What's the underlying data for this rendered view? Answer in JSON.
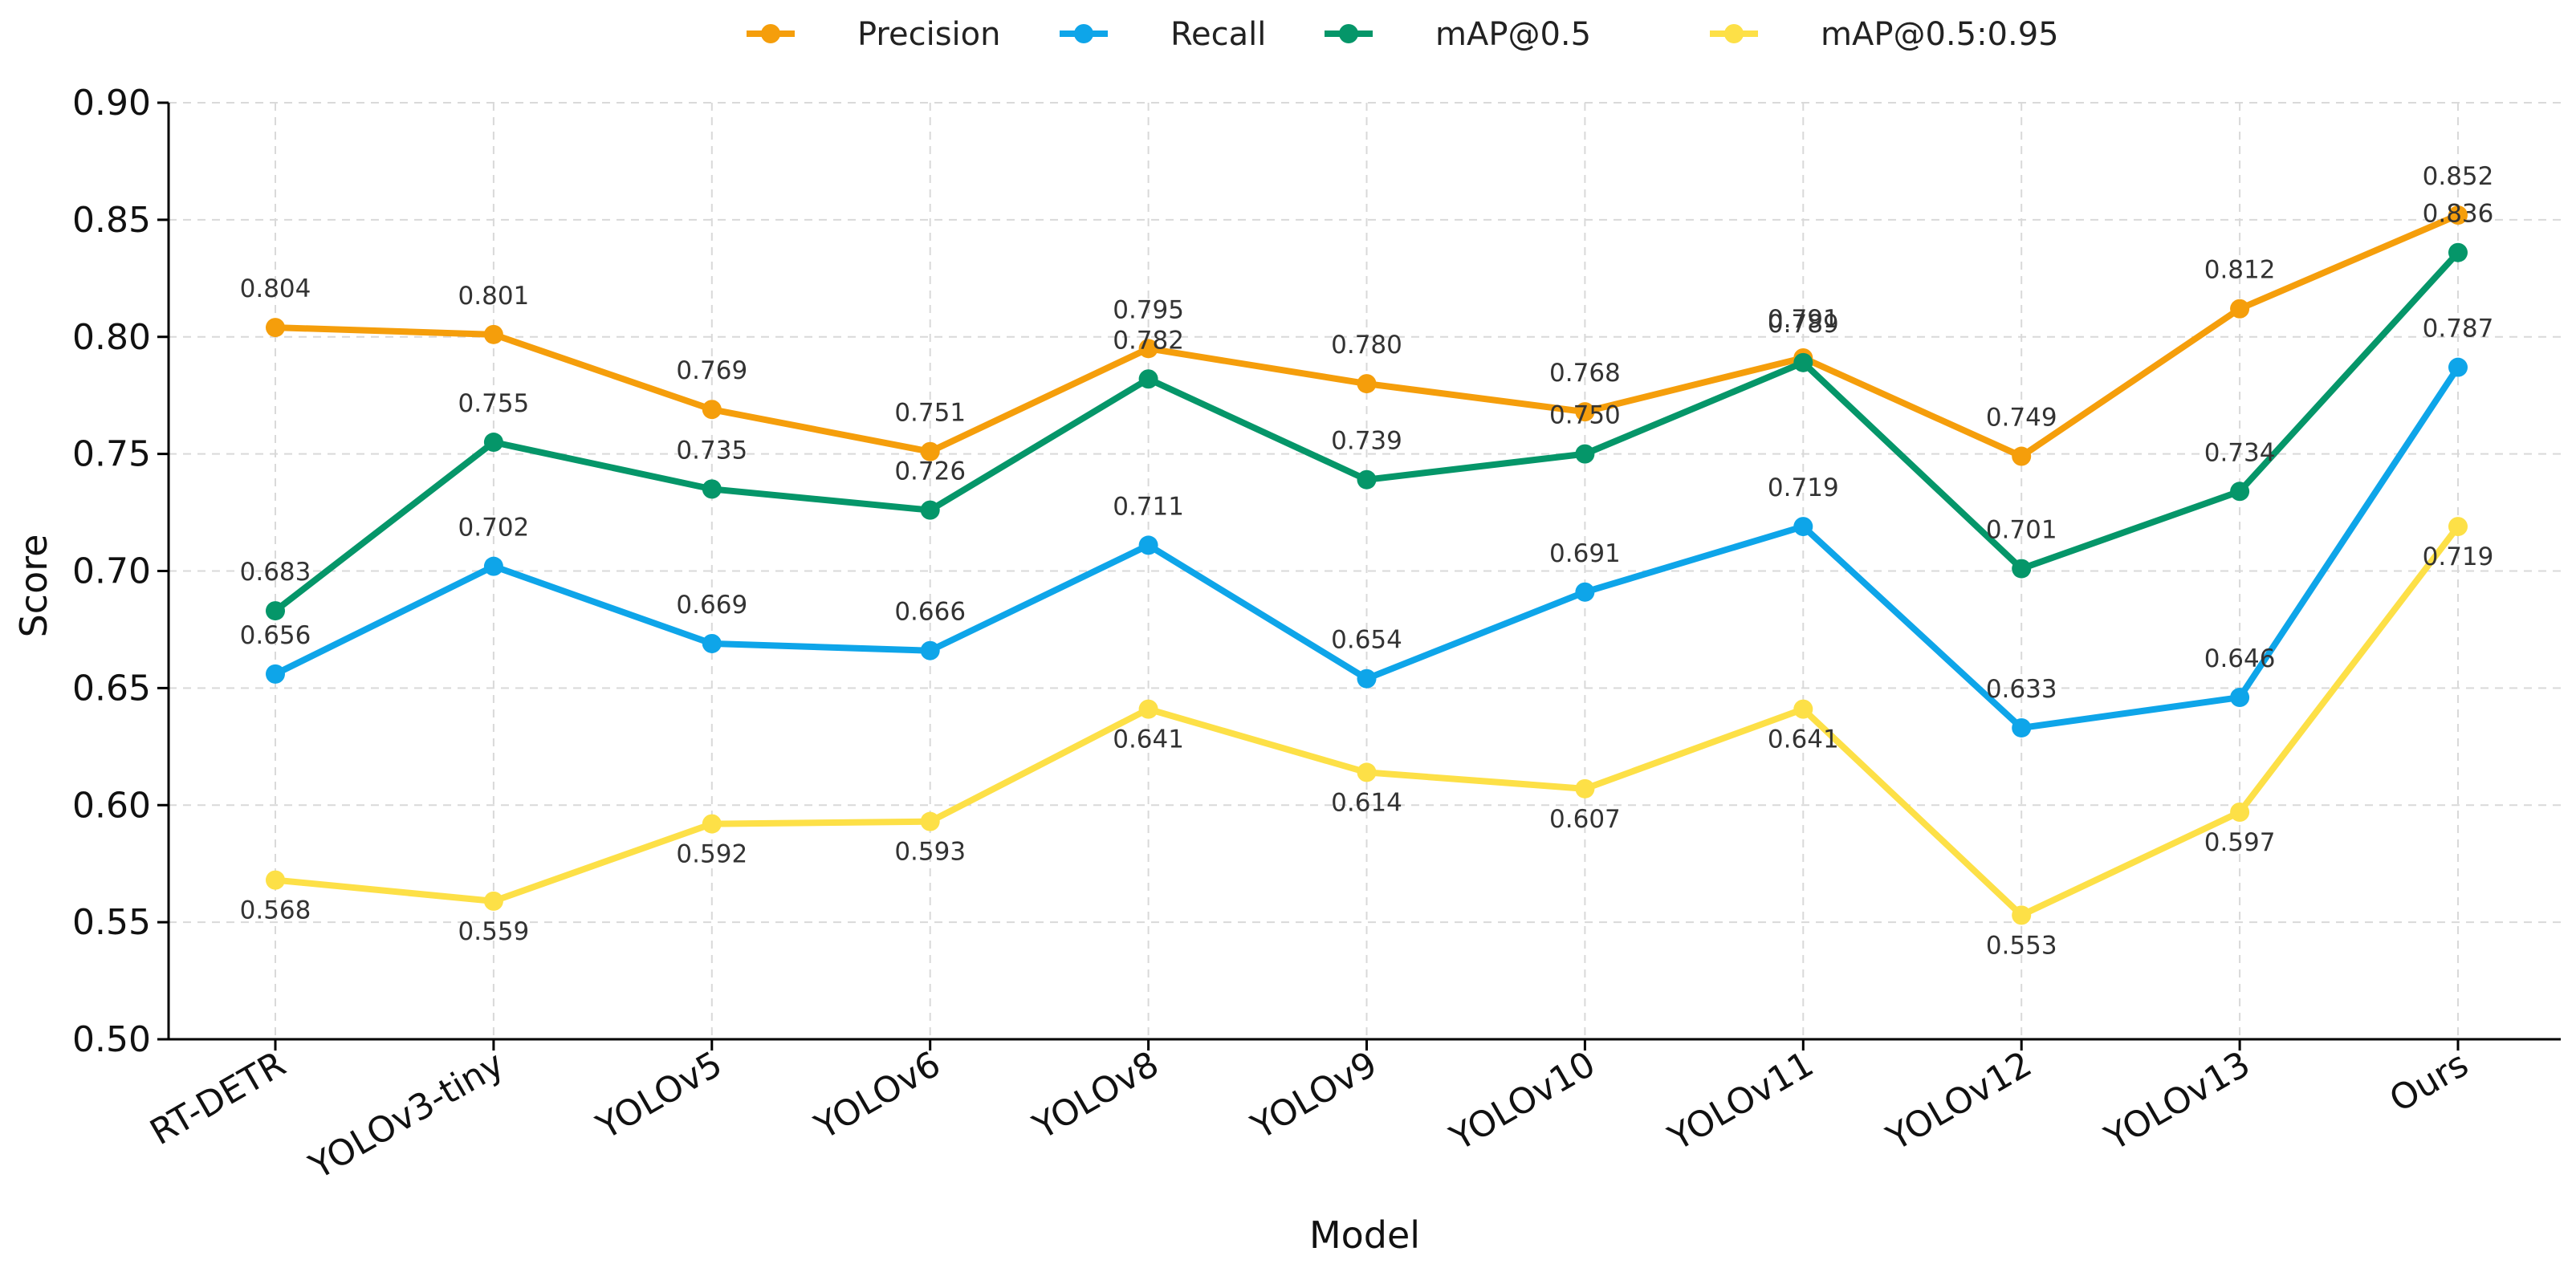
{
  "chart_data": {
    "type": "line",
    "title": "",
    "xlabel": "Model",
    "ylabel": "Score",
    "ylim": [
      0.5,
      0.9
    ],
    "yticks": [
      "0.50",
      "0.55",
      "0.60",
      "0.65",
      "0.70",
      "0.75",
      "0.80",
      "0.85",
      "0.90"
    ],
    "grid": true,
    "legend_position": "top-center",
    "categories": [
      "RT-DETR",
      "YOLOv3-tiny",
      "YOLOv5",
      "YOLOv6",
      "YOLOv8",
      "YOLOv9",
      "YOLOv10",
      "YOLOv11",
      "YOLOv12",
      "YOLOv13",
      "Ours"
    ],
    "series": [
      {
        "name": "Precision",
        "color": "#F59E0B",
        "values": [
          0.804,
          0.801,
          0.769,
          0.751,
          0.795,
          0.78,
          0.768,
          0.791,
          0.749,
          0.812,
          0.852
        ],
        "labels": [
          "0.804",
          "0.801",
          "0.769",
          "0.751",
          "0.795",
          "0.780",
          "0.768",
          "0.791",
          "0.749",
          "0.812",
          "0.852"
        ]
      },
      {
        "name": "Recall",
        "color": "#0EA5E9",
        "values": [
          0.656,
          0.702,
          0.669,
          0.666,
          0.711,
          0.654,
          0.691,
          0.719,
          0.633,
          0.646,
          0.787
        ],
        "labels": [
          "0.656",
          "0.702",
          "0.669",
          "0.666",
          "0.711",
          "0.654",
          "0.691",
          "0.719",
          "0.633",
          "0.646",
          "0.787"
        ]
      },
      {
        "name": "mAP@0.5",
        "color": "#059669",
        "values": [
          0.683,
          0.755,
          0.735,
          0.726,
          0.782,
          0.739,
          0.75,
          0.789,
          0.701,
          0.734,
          0.836
        ],
        "labels": [
          "0.683",
          "0.755",
          "0.735",
          "0.726",
          "0.782",
          "0.739",
          "0.750",
          "0.789",
          "0.701",
          "0.734",
          "0.836"
        ]
      },
      {
        "name": "mAP@0.5:0.95",
        "color": "#FDE047",
        "values": [
          0.568,
          0.559,
          0.592,
          0.593,
          0.641,
          0.614,
          0.607,
          0.641,
          0.553,
          0.597,
          0.719
        ],
        "labels": [
          "0.568",
          "0.559",
          "0.592",
          "0.593",
          "0.641",
          "0.614",
          "0.607",
          "0.641",
          "0.553",
          "0.597",
          "0.719"
        ]
      }
    ]
  }
}
